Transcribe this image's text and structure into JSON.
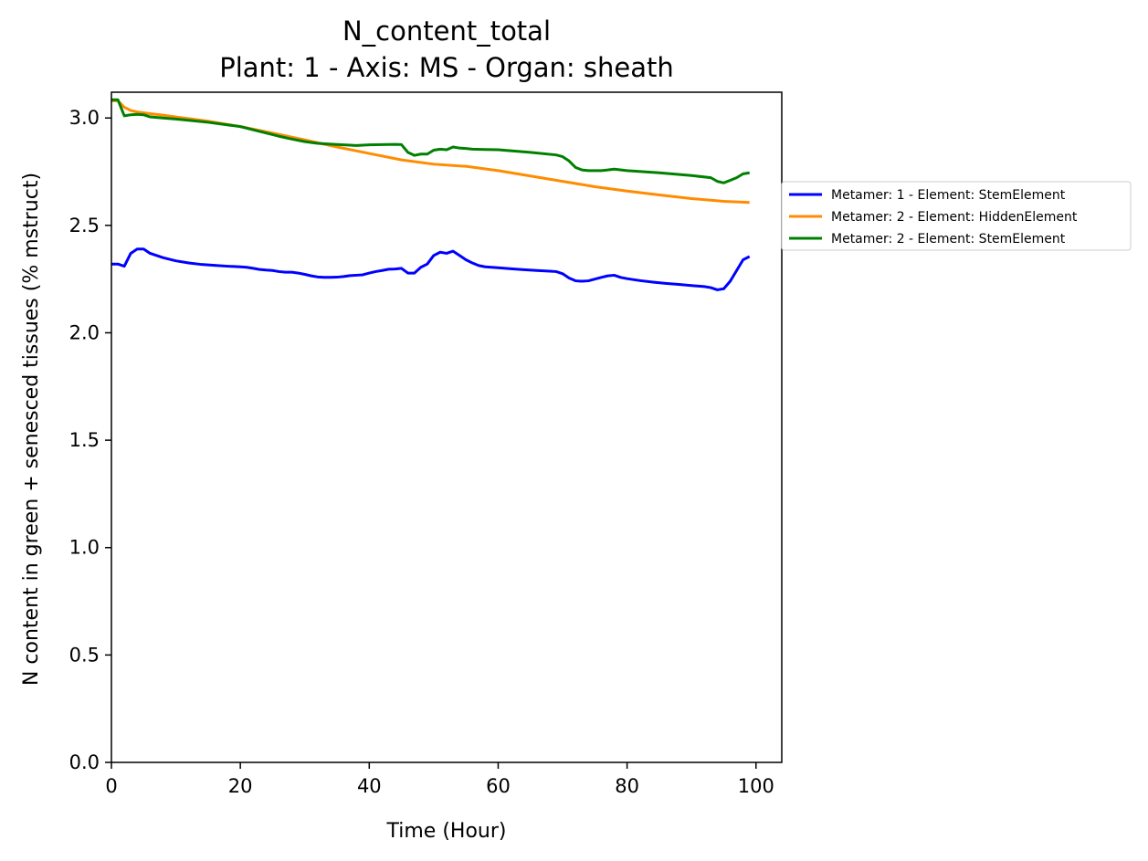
{
  "chart_data": {
    "type": "line",
    "title": "N_content_total",
    "subtitle": "Plant: 1 - Axis: MS - Organ: sheath",
    "xlabel": "Time (Hour)",
    "ylabel": "N content in green + senesced tissues (% mstruct)",
    "xlim": [
      0,
      104
    ],
    "ylim": [
      0,
      3.12
    ],
    "xticks": [
      "0",
      "20",
      "40",
      "60",
      "80",
      "100"
    ],
    "yticks": [
      "0.0",
      "0.5",
      "1.0",
      "1.5",
      "2.0",
      "2.5",
      "3.0"
    ],
    "grid": false,
    "legend_position": "outside right",
    "series": [
      {
        "name": "Metamer: 1 - Element: StemElement",
        "color": "#0000ff",
        "x": [
          0,
          1,
          2,
          3,
          4,
          5,
          6,
          8,
          10,
          12,
          14,
          16,
          18,
          20,
          21,
          22,
          23,
          24,
          25,
          26,
          27,
          28,
          29,
          30,
          31,
          32,
          33,
          34,
          35,
          36,
          37,
          38,
          39,
          40,
          41,
          42,
          43,
          44,
          45,
          46,
          47,
          48,
          49,
          50,
          51,
          52,
          53,
          54,
          55,
          56,
          57,
          58,
          59,
          60,
          62,
          64,
          66,
          68,
          69,
          70,
          71,
          72,
          73,
          74,
          75,
          76,
          77,
          78,
          79,
          80,
          82,
          84,
          86,
          88,
          90,
          92,
          93,
          94,
          95,
          96,
          97,
          98,
          99
        ],
        "y": [
          2.32,
          2.32,
          2.31,
          2.37,
          2.39,
          2.39,
          2.37,
          2.35,
          2.335,
          2.325,
          2.318,
          2.314,
          2.31,
          2.307,
          2.305,
          2.3,
          2.295,
          2.292,
          2.29,
          2.285,
          2.282,
          2.282,
          2.278,
          2.272,
          2.265,
          2.26,
          2.258,
          2.258,
          2.259,
          2.262,
          2.266,
          2.268,
          2.27,
          2.278,
          2.285,
          2.29,
          2.296,
          2.297,
          2.3,
          2.278,
          2.278,
          2.305,
          2.32,
          2.36,
          2.375,
          2.37,
          2.38,
          2.36,
          2.34,
          2.325,
          2.313,
          2.307,
          2.305,
          2.303,
          2.298,
          2.294,
          2.29,
          2.287,
          2.285,
          2.275,
          2.255,
          2.242,
          2.24,
          2.242,
          2.25,
          2.258,
          2.265,
          2.268,
          2.258,
          2.252,
          2.243,
          2.236,
          2.23,
          2.225,
          2.22,
          2.215,
          2.21,
          2.2,
          2.205,
          2.24,
          2.29,
          2.34,
          2.355
        ]
      },
      {
        "name": "Metamer: 2 - Element: HiddenElement",
        "color": "#ff8c00",
        "x": [
          0,
          1,
          2,
          3,
          4,
          6,
          8,
          10,
          15,
          20,
          25,
          30,
          35,
          40,
          45,
          50,
          55,
          60,
          65,
          70,
          75,
          80,
          85,
          90,
          95,
          99
        ],
        "y": [
          3.08,
          3.08,
          3.05,
          3.035,
          3.028,
          3.02,
          3.013,
          3.005,
          2.985,
          2.96,
          2.93,
          2.898,
          2.865,
          2.835,
          2.805,
          2.785,
          2.775,
          2.755,
          2.73,
          2.705,
          2.68,
          2.66,
          2.642,
          2.625,
          2.612,
          2.607
        ]
      },
      {
        "name": "Metamer: 2 - Element: StemElement",
        "color": "#008000",
        "x": [
          0,
          1,
          2,
          3,
          4,
          5,
          6,
          8,
          10,
          15,
          20,
          22,
          24,
          26,
          28,
          30,
          32,
          34,
          36,
          38,
          40,
          42,
          44,
          45,
          46,
          47,
          48,
          49,
          50,
          51,
          52,
          53,
          54,
          55,
          56,
          58,
          60,
          65,
          69,
          70,
          71,
          72,
          73,
          74,
          75,
          76,
          77,
          78,
          80,
          85,
          90,
          93,
          94,
          95,
          96,
          97,
          98,
          99
        ],
        "y": [
          3.085,
          3.085,
          3.01,
          3.015,
          3.017,
          3.015,
          3.005,
          3.0,
          2.995,
          2.98,
          2.96,
          2.945,
          2.93,
          2.915,
          2.902,
          2.89,
          2.882,
          2.878,
          2.875,
          2.872,
          2.875,
          2.876,
          2.877,
          2.876,
          2.84,
          2.826,
          2.832,
          2.832,
          2.85,
          2.855,
          2.852,
          2.865,
          2.86,
          2.858,
          2.855,
          2.853,
          2.852,
          2.84,
          2.828,
          2.82,
          2.8,
          2.77,
          2.758,
          2.755,
          2.755,
          2.755,
          2.758,
          2.762,
          2.755,
          2.745,
          2.732,
          2.722,
          2.705,
          2.698,
          2.71,
          2.722,
          2.74,
          2.745
        ]
      }
    ]
  }
}
